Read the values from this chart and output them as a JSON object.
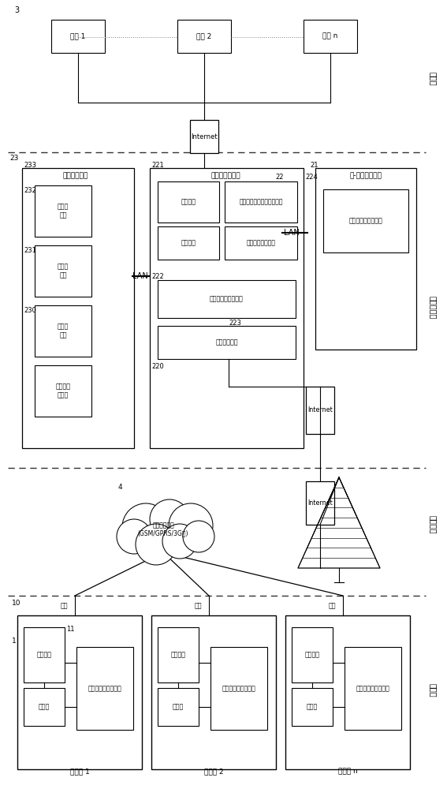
{
  "bg_color": "#ffffff",
  "lc": "#000000",
  "fig_width": 5.67,
  "fig_height": 10.0,
  "dpi": 100,
  "labels": {
    "client_layer": "客户端",
    "ground_server": "地面服务器",
    "wireless_trans": "无线传输",
    "vehicle_end": "车载端",
    "user1": "用户 1",
    "user2": "用户 2",
    "usern": "用户 n",
    "internet": "Internet",
    "lan1": "LAN",
    "lan2": "LAN",
    "db_server": "数据库服务器",
    "remote_user_db": "远程用户\n信息库",
    "vehicle_info_db": "车辆信\n息库",
    "diag_expert_db": "诊断专\n家库",
    "hist_data_db": "历史数\n据库",
    "fault_diag_server": "故障诊断服务器",
    "grinder_monitor": "打磨车监测、诊断数据获取",
    "vehicle_status": "车辆装置状态监测",
    "expert_diag": "专家诊断",
    "fault_diag_func": "故障诊断",
    "info_query": "信息查询与统计分析",
    "vehicle_info_mgmt": "车辆信息管理",
    "vehicle_comm_server": "车-地通信服务器",
    "vehicle_data_exchange": "与车载装置数据交互",
    "wireless_network": "无线传输网络\n(GSM/GPRS/3G等)",
    "antenna": "天线",
    "vehicle_device": "车载装置",
    "switch_box": "交换机",
    "traction_ctrl": "打磨、走行控制主机",
    "grinder1": "打磨机 1",
    "grinder2": "打磨机 2",
    "grindern": "打磨机 n",
    "label_3": "3",
    "label_233": "233",
    "label_23": "23",
    "label_231": "231",
    "label_230": "230",
    "label_232": "232",
    "label_220": "220",
    "label_221": "221",
    "label_222": "222",
    "label_223": "223",
    "label_224": "224",
    "label_22": "22",
    "label_21": "21",
    "label_10": "10",
    "label_11": "11",
    "label_1": "1",
    "label_4": "4"
  }
}
